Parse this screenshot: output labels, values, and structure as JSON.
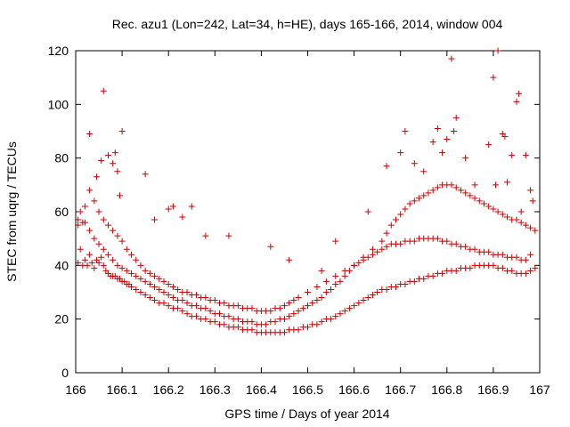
{
  "chart_data": {
    "type": "scatter",
    "title": "Rec. azu1 (Lon=242, Lat=34, h=HE), days 165-166, 2014, window 004",
    "xlabel": "GPS time / Days of year 2014",
    "ylabel": "STEC from uqrg / TECUs",
    "xlim": [
      166,
      167
    ],
    "ylim": [
      0,
      120
    ],
    "xticks": [
      166,
      166.1,
      166.2,
      166.3,
      166.4,
      166.5,
      166.6,
      166.7,
      166.8,
      166.9,
      167
    ],
    "xtick_labels": [
      "166",
      "166.1",
      "166.2",
      "166.3",
      "166.4",
      "166.5",
      "166.6",
      "166.7",
      "166.8",
      "166.9",
      "167"
    ],
    "yticks": [
      0,
      20,
      40,
      60,
      80,
      100,
      120
    ],
    "ytick_labels": [
      "0",
      "20",
      "40",
      "60",
      "80",
      "100",
      "120"
    ],
    "grid": false,
    "marker": "+",
    "marker_color": "#cc0000",
    "series": [
      {
        "x": [
          166.005,
          166.005,
          166.01,
          166.015,
          166.02,
          166.025,
          166.03,
          166.035,
          166.04,
          166.045,
          166.05,
          166.055,
          166.06,
          166.065,
          166.07,
          166.075,
          166.08,
          166.085,
          166.09,
          166.095,
          166.1,
          166.105,
          166.11,
          166.115,
          166.12,
          166.13,
          166.14,
          166.15,
          166.16,
          166.17,
          166.18,
          166.19,
          166.2,
          166.21,
          166.22,
          166.23,
          166.24,
          166.25,
          166.26,
          166.27,
          166.28,
          166.29,
          166.3,
          166.31,
          166.32,
          166.33,
          166.34,
          166.35,
          166.36,
          166.37,
          166.38,
          166.39,
          166.4,
          166.41,
          166.42,
          166.43,
          166.44,
          166.45,
          166.46,
          166.47,
          166.48,
          166.49,
          166.5,
          166.51,
          166.52,
          166.53,
          166.54,
          166.55,
          166.56,
          166.57,
          166.58,
          166.59,
          166.6,
          166.61,
          166.62,
          166.63,
          166.64,
          166.65,
          166.66,
          166.67,
          166.68,
          166.69,
          166.7,
          166.71,
          166.72,
          166.73,
          166.74,
          166.75,
          166.76,
          166.77,
          166.78,
          166.79,
          166.8,
          166.81,
          166.82,
          166.83,
          166.84,
          166.85,
          166.86,
          166.87,
          166.88,
          166.89,
          166.9,
          166.91,
          166.92,
          166.93,
          166.94,
          166.95,
          166.96,
          166.97,
          166.98,
          166.99
        ],
        "y": [
          41,
          55,
          46,
          40,
          42,
          40,
          44,
          41,
          39,
          42,
          41,
          43,
          40,
          38,
          37,
          36,
          36,
          36,
          35,
          35,
          34,
          34,
          33,
          33,
          32,
          31,
          30,
          29,
          28,
          27,
          26,
          26,
          25,
          24,
          24,
          23,
          22,
          21,
          21,
          20,
          20,
          19,
          19,
          18,
          18,
          17,
          17,
          17,
          16,
          16,
          16,
          15,
          15,
          15,
          15,
          15,
          15,
          15,
          16,
          16,
          16,
          17,
          17,
          18,
          18,
          19,
          20,
          20,
          21,
          22,
          23,
          24,
          25,
          26,
          27,
          28,
          29,
          30,
          31,
          31,
          32,
          32,
          33,
          33,
          34,
          34,
          35,
          35,
          36,
          36,
          37,
          37,
          38,
          38,
          38,
          39,
          39,
          39,
          40,
          40,
          40,
          40,
          40,
          39,
          39,
          38,
          38,
          37,
          37,
          37,
          38,
          39
        ]
      },
      {
        "x": [
          166.005,
          166.01,
          166.02,
          166.03,
          166.04,
          166.05,
          166.06,
          166.07,
          166.08,
          166.09,
          166.1,
          166.11,
          166.12,
          166.13,
          166.14,
          166.15,
          166.16,
          166.17,
          166.18,
          166.19,
          166.2,
          166.21,
          166.22,
          166.23,
          166.24,
          166.25,
          166.26,
          166.27,
          166.28,
          166.29,
          166.3,
          166.31,
          166.32,
          166.33,
          166.34,
          166.35,
          166.36,
          166.37,
          166.38,
          166.39,
          166.4,
          166.41,
          166.42,
          166.43,
          166.44,
          166.45,
          166.46,
          166.47,
          166.48,
          166.49,
          166.5,
          166.51,
          166.52,
          166.53,
          166.54,
          166.55,
          166.56,
          166.57,
          166.58,
          166.59,
          166.6,
          166.61,
          166.62,
          166.63,
          166.64,
          166.65,
          166.66,
          166.67,
          166.68,
          166.69,
          166.7,
          166.71,
          166.72,
          166.73,
          166.74,
          166.75,
          166.76,
          166.77,
          166.78,
          166.79,
          166.8,
          166.81,
          166.82,
          166.83,
          166.84,
          166.85,
          166.86,
          166.87,
          166.88,
          166.89,
          166.9,
          166.91,
          166.92,
          166.93,
          166.94,
          166.95,
          166.96,
          166.97,
          166.98
        ],
        "y": [
          57,
          60,
          56,
          53,
          50,
          48,
          46,
          44,
          42,
          40,
          39,
          38,
          37,
          36,
          35,
          34,
          33,
          32,
          31,
          30,
          29,
          28,
          27,
          27,
          26,
          25,
          25,
          24,
          24,
          23,
          22,
          22,
          21,
          21,
          20,
          20,
          19,
          19,
          19,
          18,
          18,
          18,
          19,
          19,
          20,
          20,
          21,
          22,
          23,
          24,
          25,
          26,
          27,
          28,
          30,
          31,
          33,
          34,
          36,
          38,
          40,
          41,
          42,
          43,
          44,
          45,
          46,
          47,
          48,
          48,
          48,
          49,
          49,
          49,
          50,
          50,
          50,
          50,
          50,
          49,
          49,
          48,
          48,
          47,
          47,
          46,
          46,
          45,
          45,
          45,
          44,
          44,
          44,
          43,
          43,
          43,
          42,
          42,
          44
        ]
      },
      {
        "x": [
          166.02,
          166.03,
          166.04,
          166.05,
          166.06,
          166.07,
          166.08,
          166.09,
          166.1,
          166.11,
          166.12,
          166.13,
          166.14,
          166.15,
          166.16,
          166.17,
          166.18,
          166.19,
          166.2,
          166.21,
          166.22,
          166.23,
          166.24,
          166.25,
          166.26,
          166.27,
          166.28,
          166.29,
          166.3,
          166.31,
          166.32,
          166.33,
          166.34,
          166.35,
          166.36,
          166.37,
          166.38,
          166.39,
          166.4,
          166.41,
          166.42,
          166.43,
          166.44,
          166.45,
          166.46,
          166.47,
          166.48,
          166.5,
          166.52,
          166.54,
          166.56,
          166.58,
          166.6,
          166.62,
          166.64,
          166.66,
          166.67,
          166.68,
          166.69,
          166.7,
          166.71,
          166.72,
          166.73,
          166.74,
          166.75,
          166.76,
          166.77,
          166.78,
          166.79,
          166.8,
          166.81,
          166.82,
          166.83,
          166.84,
          166.85,
          166.86,
          166.87,
          166.88,
          166.89,
          166.9,
          166.91,
          166.92,
          166.93,
          166.94,
          166.95,
          166.96,
          166.97,
          166.98,
          166.99
        ],
        "y": [
          62,
          68,
          64,
          60,
          57,
          55,
          53,
          51,
          49,
          46,
          44,
          42,
          40,
          38,
          37,
          36,
          35,
          34,
          33,
          32,
          31,
          30,
          30,
          29,
          29,
          28,
          28,
          27,
          27,
          26,
          26,
          25,
          25,
          25,
          24,
          24,
          24,
          23,
          23,
          23,
          23,
          24,
          24,
          25,
          26,
          27,
          28,
          30,
          32,
          34,
          36,
          38,
          40,
          43,
          46,
          49,
          52,
          55,
          57,
          59,
          61,
          63,
          64,
          65,
          66,
          67,
          68,
          69,
          70,
          70,
          70,
          69,
          68,
          67,
          66,
          65,
          64,
          63,
          62,
          61,
          60,
          59,
          58,
          57,
          57,
          56,
          55,
          54,
          53
        ]
      },
      {
        "x": [
          166.015,
          166.03,
          166.045,
          166.055,
          166.06,
          166.07,
          166.08,
          166.085,
          166.09,
          166.095,
          166.1,
          166.15,
          166.17,
          166.2,
          166.21,
          166.23,
          166.25,
          166.28,
          166.33,
          166.42,
          166.46,
          166.53,
          166.56,
          166.63,
          166.67,
          166.7,
          166.71,
          166.73,
          166.75,
          166.77,
          166.78,
          166.79,
          166.8,
          166.81,
          166.815,
          166.82,
          166.84,
          166.86,
          166.89,
          166.9,
          166.905,
          166.91,
          166.92,
          166.925,
          166.93,
          166.94,
          166.95,
          166.955,
          166.96,
          166.97,
          166.98,
          166.985
        ],
        "y": [
          56,
          89,
          73,
          79,
          105,
          81,
          78,
          82,
          75,
          66,
          90,
          74,
          57,
          61,
          62,
          58,
          62,
          51,
          51,
          47,
          42,
          38,
          49,
          60,
          77,
          82,
          90,
          78,
          75,
          86,
          91,
          82,
          87,
          117,
          90,
          95,
          80,
          70,
          85,
          110,
          70,
          120,
          89,
          88,
          71,
          81,
          101,
          104,
          60,
          81,
          68,
          64
        ]
      }
    ]
  }
}
